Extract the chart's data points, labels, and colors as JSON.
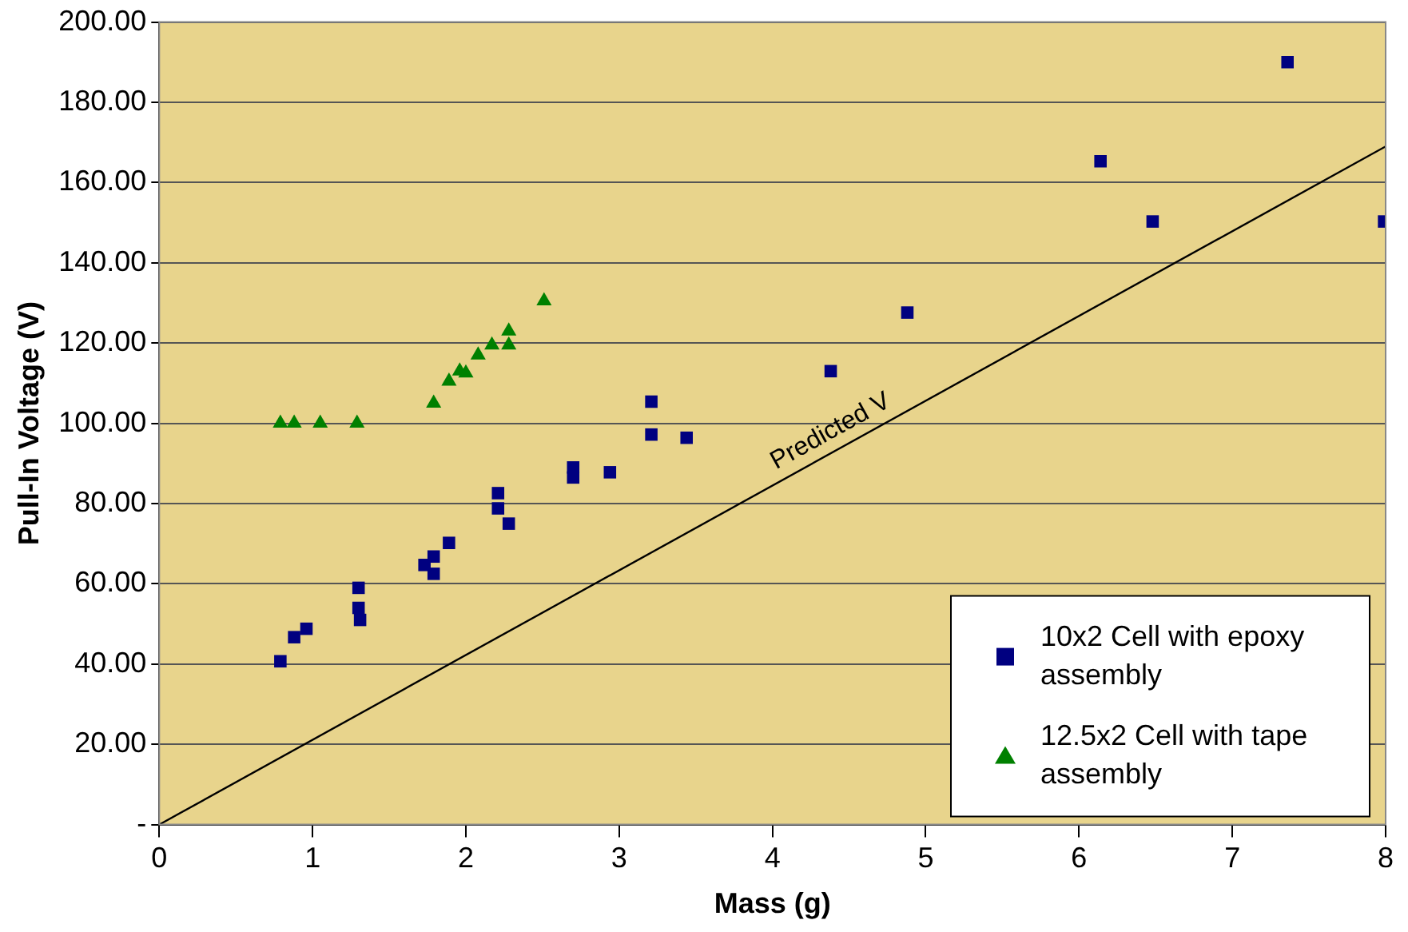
{
  "chart_data": {
    "type": "scatter",
    "xlabel": "Mass (g)",
    "ylabel": "Pull-In Voltage (V)",
    "xlim": [
      0,
      8
    ],
    "xticks": [
      0,
      1,
      2,
      3,
      4,
      5,
      6,
      7,
      8
    ],
    "ylim": [
      0,
      200
    ],
    "yticks": [
      {
        "value": 0,
        "label": "-"
      },
      {
        "value": 20,
        "label": "20.00"
      },
      {
        "value": 40,
        "label": "40.00"
      },
      {
        "value": 60,
        "label": "60.00"
      },
      {
        "value": 80,
        "label": "80.00"
      },
      {
        "value": 100,
        "label": "100.00"
      },
      {
        "value": 120,
        "label": "120.00"
      },
      {
        "value": 140,
        "label": "140.00"
      },
      {
        "value": 160,
        "label": "160.00"
      },
      {
        "value": 180,
        "label": "180.00"
      },
      {
        "value": 200,
        "label": "200.00"
      }
    ],
    "grid": "y",
    "legend": "bottom right",
    "series": [
      {
        "name": "10x2 Cell with epoxy assembly",
        "color": "#000080",
        "marker": "square",
        "x": [
          0.79,
          0.88,
          0.96,
          1.3,
          1.3,
          1.31,
          1.73,
          1.79,
          1.79,
          1.89,
          2.21,
          2.21,
          2.28,
          2.7,
          2.7,
          2.94,
          3.21,
          3.21,
          3.44,
          4.38,
          4.88,
          6.14,
          6.48,
          7.36,
          7.99
        ],
        "values": [
          40.7,
          46.7,
          48.8,
          59,
          54,
          51,
          64.7,
          66.8,
          62.5,
          70.2,
          82.6,
          78.8,
          75,
          89,
          86.5,
          87.8,
          105.4,
          97.2,
          96.4,
          113,
          127.6,
          165.3,
          150.3,
          190,
          150.3
        ]
      },
      {
        "name": "12.5x2 Cell with tape assembly",
        "color": "#008000",
        "marker": "triangle",
        "x": [
          0.79,
          0.88,
          1.05,
          1.29,
          1.79,
          1.89,
          1.96,
          2.0,
          2.08,
          2.17,
          2.28,
          2.28,
          2.51
        ],
        "values": [
          100,
          100,
          100,
          100,
          105,
          110.5,
          113,
          112.5,
          117,
          119.5,
          119.5,
          123,
          130.5
        ]
      },
      {
        "name": "Predicted V",
        "type": "line",
        "color": "#000000",
        "marker": "none",
        "x": [
          0,
          8
        ],
        "values": [
          0,
          169
        ]
      }
    ]
  }
}
